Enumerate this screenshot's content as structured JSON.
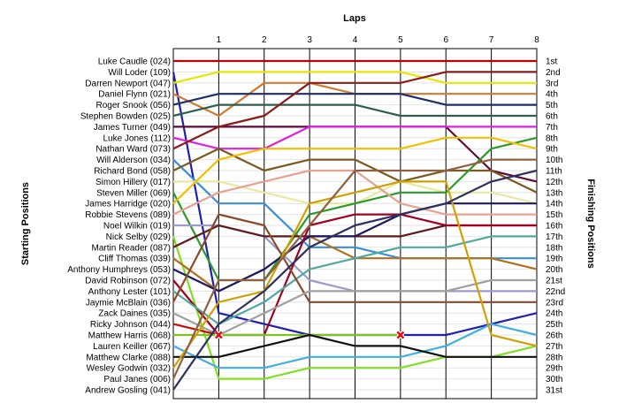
{
  "chart_data": {
    "type": "line",
    "title": "",
    "xlabel": "Laps",
    "ylabel_left": "Starting Positions",
    "ylabel_right": "Finishing Positions",
    "x": [
      0,
      1,
      2,
      3,
      4,
      5,
      6,
      7,
      8
    ],
    "x_tick_labels": [
      "1",
      "2",
      "3",
      "4",
      "5",
      "6",
      "7",
      "8"
    ],
    "xlim": [
      0,
      8
    ],
    "ylim": [
      1,
      31
    ],
    "y_inverted": true,
    "grid": true,
    "retirement_marker": "red-x",
    "finishing_labels": [
      "1st",
      "2nd",
      "3rd",
      "4th",
      "5th",
      "6th",
      "7th",
      "8th",
      "9th",
      "10th",
      "11th",
      "12th",
      "13th",
      "14th",
      "15th",
      "16th",
      "17th",
      "18th",
      "19th",
      "20th",
      "21st",
      "22nd",
      "23rd",
      "24th",
      "25th",
      "26th",
      "27th",
      "28th",
      "29th",
      "30th",
      "31st"
    ],
    "series": [
      {
        "name": "Luke Caudle (024)",
        "color": "#c00000",
        "positions": [
          1,
          1,
          1,
          1,
          1,
          1,
          1,
          1,
          1
        ]
      },
      {
        "name": "Will Loder (109)",
        "color": "#1f1fb4",
        "positions": [
          2,
          24,
          25,
          26,
          26,
          26,
          26,
          25,
          24
        ]
      },
      {
        "name": "Darren Newport (047)",
        "color": "#e6e600",
        "positions": [
          3,
          2,
          2,
          2,
          2,
          2,
          3,
          3,
          3
        ]
      },
      {
        "name": "Daniel Flynn (021)",
        "color": "#d07a30",
        "positions": [
          4,
          6,
          3,
          3,
          4,
          4,
          4,
          4,
          4
        ]
      },
      {
        "name": "Roger Snook (056)",
        "color": "#1c2f6a",
        "positions": [
          5,
          4,
          4,
          4,
          4,
          4,
          5,
          5,
          5
        ]
      },
      {
        "name": "Stephen Bowden (025)",
        "color": "#2e5e4e",
        "positions": [
          6,
          5,
          5,
          5,
          5,
          6,
          6,
          6,
          6
        ]
      },
      {
        "name": "James Turner (049)",
        "color": "#5c0a3a",
        "positions": [
          7,
          7,
          7,
          7,
          7,
          7,
          7,
          11,
          12
        ]
      },
      {
        "name": "Luke Jones (112)",
        "color": "#e020e0",
        "positions": [
          8,
          9,
          9,
          7,
          7,
          7,
          7,
          7,
          7
        ]
      },
      {
        "name": "Nathan Ward (073)",
        "color": "#8b1a1a",
        "positions": [
          9,
          7,
          6,
          3,
          3,
          3,
          2,
          2,
          2
        ]
      },
      {
        "name": "Will Alderson (034)",
        "color": "#3a8fd8",
        "positions": [
          10,
          14,
          14,
          18,
          18,
          19,
          19,
          19,
          19
        ]
      },
      {
        "name": "Richard Bond (058)",
        "color": "#7a5a20",
        "positions": [
          11,
          9,
          11,
          10,
          10,
          12,
          11,
          11,
          13
        ]
      },
      {
        "name": "Simon Hillery (017)",
        "color": "#e8e8a0",
        "positions": [
          12,
          12,
          13,
          14,
          14,
          12,
          13,
          13,
          14
        ]
      },
      {
        "name": "Steven Miller (069)",
        "color": "#2a9a2a",
        "positions": [
          13,
          21,
          21,
          15,
          14,
          13,
          13,
          9,
          8
        ]
      },
      {
        "name": "James Harridge (020)",
        "color": "#f0c000",
        "positions": [
          14,
          10,
          9,
          9,
          9,
          9,
          8,
          8,
          9
        ]
      },
      {
        "name": "Robbie Stevens (089)",
        "color": "#e8a090",
        "positions": [
          15,
          13,
          12,
          11,
          11,
          14,
          15,
          15,
          15
        ]
      },
      {
        "name": "Noel Wilkin (019)",
        "color": "#9a9acc",
        "positions": [
          16,
          16,
          17,
          21,
          22,
          22,
          22,
          22,
          22
        ]
      },
      {
        "name": "Nick Selby (029)",
        "color": "#80e020",
        "positions": [
          17,
          30,
          30,
          29,
          29,
          29,
          28,
          28,
          27
        ]
      },
      {
        "name": "Martin Reader (087)",
        "color": "#5c1a1a",
        "positions": [
          18,
          16,
          17,
          17,
          17,
          17,
          16,
          16,
          16
        ]
      },
      {
        "name": "Cliff Thomas (039)",
        "color": "#b07020",
        "positions": [
          19,
          22,
          20,
          17,
          19,
          19,
          19,
          19,
          20
        ]
      },
      {
        "name": "Anthony Humphreys (053)",
        "color": "#1a1a60",
        "positions": [
          20,
          22,
          20,
          17,
          17,
          15,
          14,
          14,
          14
        ]
      },
      {
        "name": "David Robinson (072)",
        "color": "#a00020",
        "positions": [
          21,
          26,
          26,
          16,
          15,
          15,
          16,
          16,
          16
        ]
      },
      {
        "name": "Anthony Lester (101)",
        "color": "#50a8a0",
        "positions": [
          22,
          25,
          23,
          20,
          19,
          18,
          18,
          17,
          17
        ]
      },
      {
        "name": "Jaymie McBlain (036)",
        "color": "#8a4a2a",
        "positions": [
          23,
          15,
          16,
          23,
          23,
          23,
          23,
          23,
          23
        ]
      },
      {
        "name": "Zack Daines (035)",
        "color": "#a0a0a0",
        "positions": [
          24,
          26,
          24,
          22,
          22,
          22,
          22,
          21,
          21
        ]
      },
      {
        "name": "Ricky Johnson (044)",
        "color": "#c01010",
        "positions": [
          25,
          26
        ]
      },
      {
        "name": "Matthew Harris (068)",
        "color": "#80c020",
        "positions": [
          26,
          26,
          26,
          26,
          26,
          26
        ]
      },
      {
        "name": "Lauren Keiller (067)",
        "color": "#40b0e0",
        "positions": [
          27,
          29,
          29,
          28,
          28,
          28,
          27,
          25,
          26
        ]
      },
      {
        "name": "Matthew Clarke (088)",
        "color": "#101010",
        "positions": [
          28,
          28,
          27,
          26,
          27,
          27,
          28,
          28,
          28
        ]
      },
      {
        "name": "Wesley Godwin (032)",
        "color": "#d0a000",
        "positions": [
          29,
          23,
          22,
          14,
          13,
          12,
          12,
          26,
          27
        ]
      },
      {
        "name": "Paul Janes (006)",
        "color": "#906040",
        "positions": [
          30,
          21,
          21,
          16,
          11,
          11,
          11,
          10,
          10
        ]
      },
      {
        "name": "Andrew Gosling (041)",
        "color": "#303060",
        "positions": [
          31,
          25,
          22,
          18,
          16,
          15,
          14,
          12,
          11
        ]
      }
    ]
  }
}
